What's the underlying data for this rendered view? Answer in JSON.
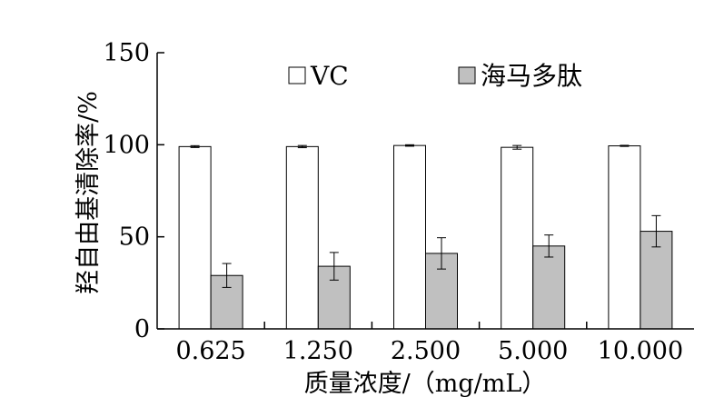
{
  "chart_data": {
    "type": "bar",
    "title": "",
    "xlabel": "质量浓度/（mg/mL）",
    "ylabel": "羟自由基清除率/%",
    "categories": [
      "0.625",
      "1.250",
      "2.500",
      "5.000",
      "10.000"
    ],
    "ylim": [
      0,
      150
    ],
    "yticks": [
      0,
      50,
      100,
      150
    ],
    "grid": false,
    "legend_position": "top-center",
    "series": [
      {
        "name": "VC",
        "values": [
          99.0,
          99.0,
          99.6,
          98.6,
          99.4
        ],
        "errors": [
          0.5,
          0.6,
          0.4,
          1.0,
          0.3
        ],
        "color": "#ffffff",
        "icon": "white-square"
      },
      {
        "name": "海马多肽",
        "values": [
          29,
          34,
          41,
          45,
          53
        ],
        "errors": [
          6.5,
          7.5,
          8.5,
          6.0,
          8.5
        ],
        "color": "#c0c0c0",
        "icon": "gray-square"
      }
    ]
  }
}
